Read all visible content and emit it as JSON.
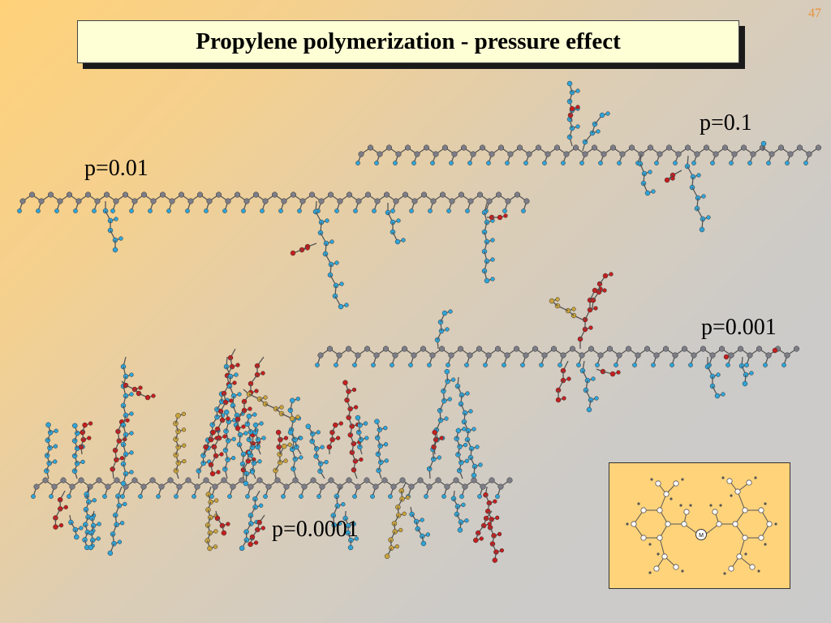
{
  "slide": {
    "page_number": "47",
    "title": "Propylene polymerization - pressure effect"
  },
  "labels": {
    "p1": "p=0.1",
    "p2": "p=0.01",
    "p3": "p=0.001",
    "p4": "p=0.0001"
  },
  "inset": {
    "metal_atom": "M"
  },
  "colors": {
    "backbone": "#7d7d87",
    "methyl": "#2fa4d8",
    "secondary_branch": "#c41e1e",
    "tertiary_branch": "#c9a23a",
    "title_box": "#ffffd6",
    "inset_bg": "#ffd37a"
  }
}
